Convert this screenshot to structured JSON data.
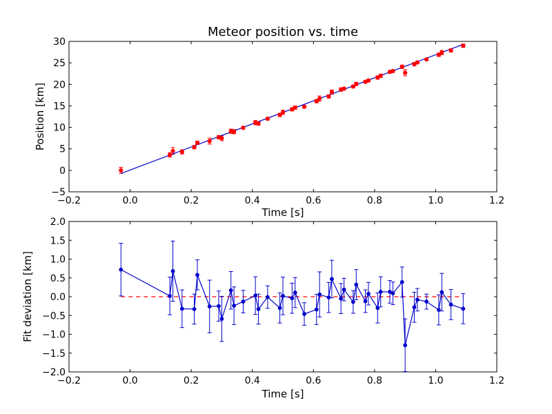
{
  "chart_data": [
    {
      "type": "scatter",
      "title": "Meteor position vs. time",
      "xlabel": "Time [s]",
      "ylabel": "Position [km]",
      "xlim": [
        -0.2,
        1.2
      ],
      "ylim": [
        -5,
        30
      ],
      "xticks": [
        "−0.2",
        "0.0",
        "0.2",
        "0.4",
        "0.6",
        "0.8",
        "1.0",
        "1.2"
      ],
      "yticks": [
        "−5",
        "0",
        "5",
        "10",
        "15",
        "20",
        "25",
        "30"
      ],
      "grid": false,
      "legend": "none",
      "series": [
        {
          "kind": "points-with-errorbars",
          "color": "#ff0000",
          "x": [
            -0.03,
            0.13,
            0.14,
            0.17,
            0.21,
            0.22,
            0.26,
            0.29,
            0.3,
            0.33,
            0.34,
            0.37,
            0.41,
            0.42,
            0.45,
            0.49,
            0.5,
            0.53,
            0.54,
            0.57,
            0.61,
            0.62,
            0.65,
            0.66,
            0.69,
            0.7,
            0.73,
            0.74,
            0.77,
            0.78,
            0.81,
            0.82,
            0.85,
            0.86,
            0.89,
            0.9,
            0.93,
            0.94,
            0.97,
            1.01,
            1.02,
            1.05,
            1.09
          ],
          "y": [
            0.0,
            3.6,
            4.5,
            4.3,
            5.4,
            6.4,
            6.8,
            7.7,
            7.5,
            9.1,
            9.0,
            9.9,
            11.1,
            10.9,
            12.0,
            12.9,
            13.5,
            14.2,
            14.6,
            14.8,
            16.1,
            16.7,
            17.2,
            18.2,
            18.8,
            19.0,
            19.5,
            20.1,
            20.6,
            20.9,
            21.6,
            22.0,
            22.9,
            23.1,
            24.1,
            22.7,
            24.7,
            25.1,
            25.8,
            26.9,
            27.4,
            27.9,
            29.0
          ],
          "yerr": [
            0.7,
            0.5,
            0.8,
            0.5,
            0.4,
            0.4,
            0.7,
            0.4,
            0.6,
            0.5,
            0.5,
            0.3,
            0.5,
            0.4,
            0.3,
            0.4,
            0.5,
            0.4,
            0.4,
            0.3,
            0.4,
            0.6,
            0.4,
            0.5,
            0.4,
            0.3,
            0.3,
            0.4,
            0.3,
            0.3,
            0.4,
            0.4,
            0.3,
            0.3,
            0.4,
            0.7,
            0.4,
            0.3,
            0.2,
            0.4,
            0.5,
            0.4,
            0.4
          ]
        },
        {
          "kind": "fit-line",
          "color": "#0000cc",
          "x": [
            -0.03,
            1.09
          ],
          "y": [
            -0.73,
            29.3
          ]
        }
      ]
    },
    {
      "type": "line",
      "xlabel": "Time [s]",
      "ylabel": "Fit deviation [km]",
      "xlim": [
        -0.2,
        1.2
      ],
      "ylim": [
        -2.0,
        2.0
      ],
      "xticks": [
        "−0.2",
        "0.0",
        "0.2",
        "0.4",
        "0.6",
        "0.8",
        "1.0",
        "1.2"
      ],
      "yticks": [
        "−2.0",
        "−1.5",
        "−1.0",
        "−0.5",
        "0.0",
        "0.5",
        "1.0",
        "1.5",
        "2.0"
      ],
      "grid": false,
      "legend": "none",
      "series": [
        {
          "kind": "line-with-errorbars",
          "color": "#0000cc",
          "x": [
            -0.03,
            0.13,
            0.14,
            0.17,
            0.21,
            0.22,
            0.26,
            0.29,
            0.3,
            0.33,
            0.34,
            0.37,
            0.41,
            0.42,
            0.45,
            0.49,
            0.5,
            0.53,
            0.54,
            0.57,
            0.61,
            0.62,
            0.65,
            0.66,
            0.69,
            0.7,
            0.73,
            0.74,
            0.77,
            0.78,
            0.81,
            0.82,
            0.85,
            0.86,
            0.89,
            0.9,
            0.93,
            0.94,
            0.97,
            1.01,
            1.02,
            1.05,
            1.09
          ],
          "y": [
            0.72,
            0.02,
            0.68,
            -0.32,
            -0.33,
            0.58,
            -0.26,
            -0.25,
            -0.59,
            0.17,
            -0.24,
            -0.13,
            0.03,
            -0.33,
            -0.01,
            -0.3,
            0.02,
            -0.04,
            0.11,
            -0.46,
            -0.34,
            0.06,
            -0.02,
            0.47,
            -0.05,
            0.19,
            -0.14,
            0.32,
            -0.12,
            0.08,
            -0.3,
            0.13,
            0.13,
            0.09,
            0.39,
            -1.29,
            -0.28,
            -0.08,
            -0.13,
            -0.35,
            0.12,
            -0.21,
            -0.32
          ]
        },
        {
          "kind": "zero-reference",
          "color": "#ff0000",
          "x": [
            -0.03,
            1.09
          ],
          "y": [
            0,
            0
          ]
        }
      ]
    }
  ]
}
